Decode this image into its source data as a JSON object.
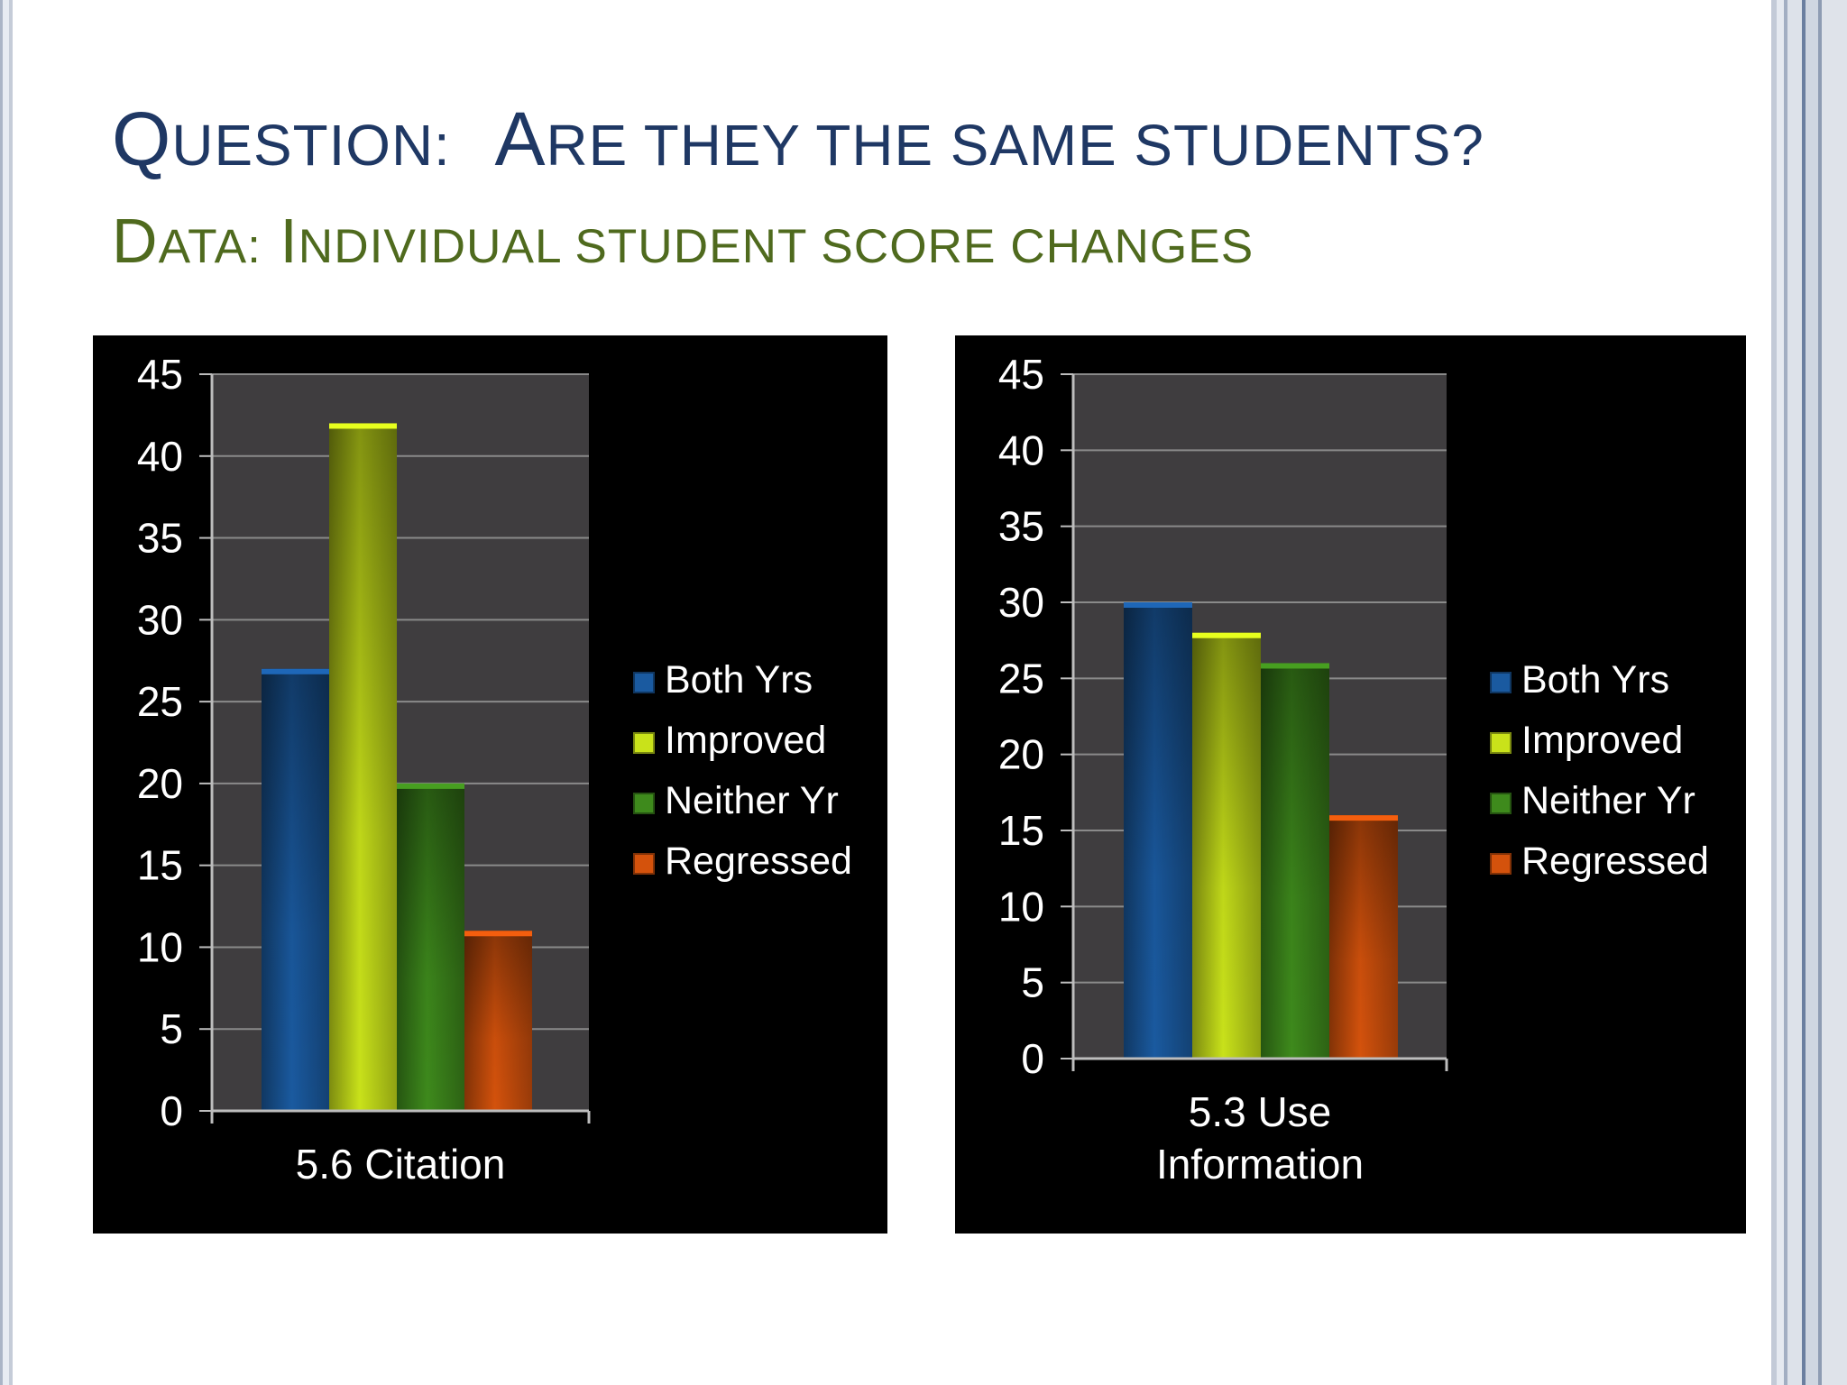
{
  "slide": {
    "title_line1": {
      "part1_cap": "Q",
      "part1_sc": "uestion:",
      "part2_cap": "A",
      "part2_sc": "re they the same students?"
    },
    "title_line2": {
      "part1_cap": "D",
      "part1_sc": "ata:",
      "part2_cap": "I",
      "part2_sc": "ndividual student score changes"
    }
  },
  "chart_data": [
    {
      "type": "bar",
      "categories": [
        "5.6 Citation"
      ],
      "series": [
        {
          "name": "Both Yrs",
          "values": [
            27
          ]
        },
        {
          "name": "Improved",
          "values": [
            42
          ]
        },
        {
          "name": "Neither Yr",
          "values": [
            20
          ]
        },
        {
          "name": "Regressed",
          "values": [
            11
          ]
        }
      ],
      "ylim": [
        0,
        45
      ],
      "yticks": [
        "0",
        "5",
        "10",
        "15",
        "20",
        "25",
        "30",
        "35",
        "40",
        "45"
      ],
      "legend": "right",
      "grid": true
    },
    {
      "type": "bar",
      "categories": [
        "5.3 Use Information"
      ],
      "series": [
        {
          "name": "Both Yrs",
          "values": [
            30
          ]
        },
        {
          "name": "Improved",
          "values": [
            28
          ]
        },
        {
          "name": "Neither Yr",
          "values": [
            26
          ]
        },
        {
          "name": "Regressed",
          "values": [
            16
          ]
        }
      ],
      "ylim": [
        0,
        45
      ],
      "yticks": [
        "0",
        "5",
        "10",
        "15",
        "20",
        "25",
        "30",
        "35",
        "40",
        "45"
      ],
      "legend": "right",
      "grid": true
    }
  ],
  "colors": {
    "Both Yrs": "#1a5aa0",
    "Improved": "#c9e21a",
    "Neither Yr": "#3e8a1c",
    "Regressed": "#d4520c",
    "plot_area": "#3f3d3f",
    "panel": "#000000",
    "title_line1": "#1f3864",
    "title_line2": "#4f6a1e"
  }
}
